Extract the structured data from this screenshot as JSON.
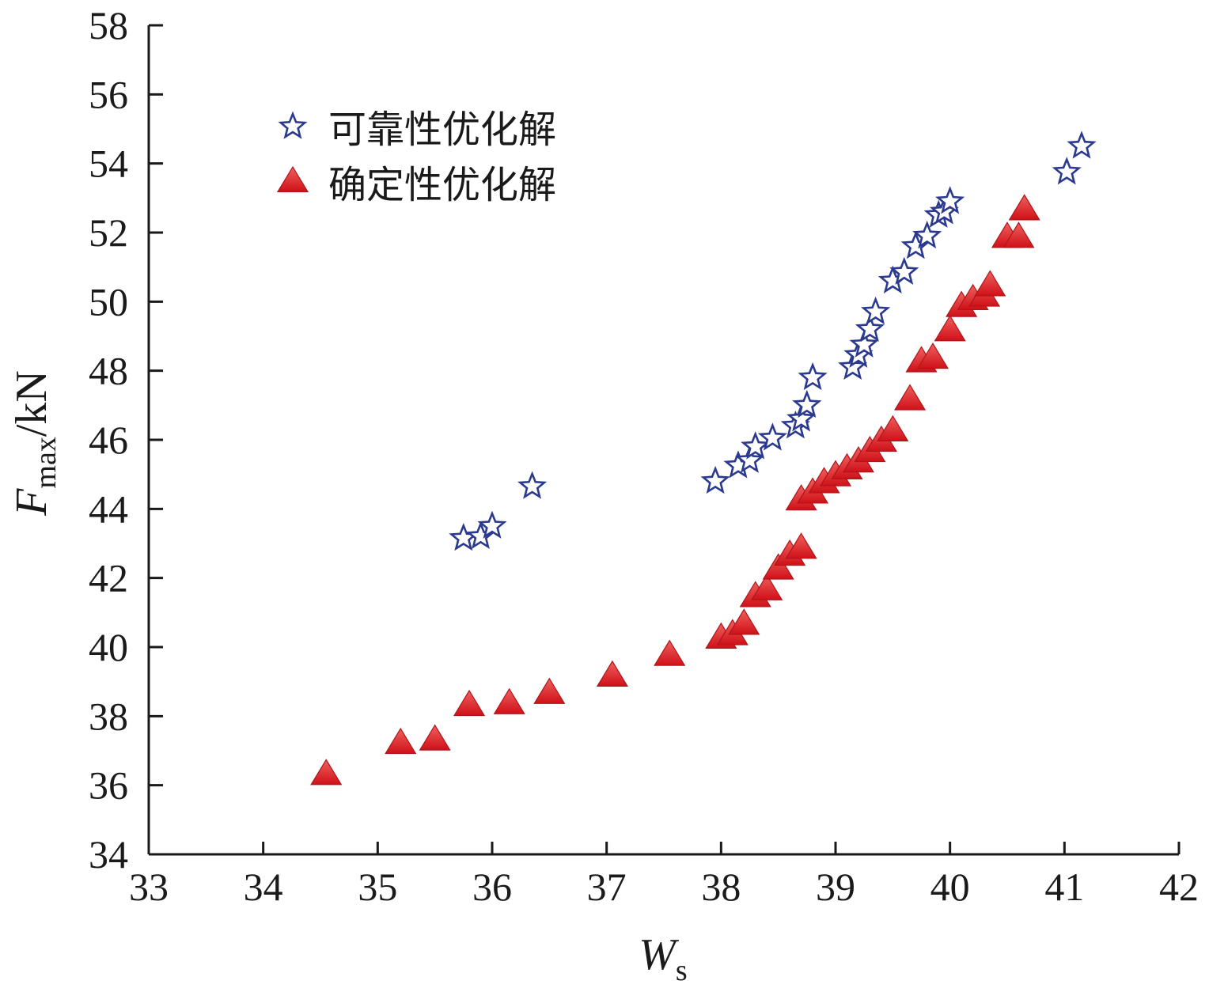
{
  "chart_data": {
    "type": "scatter",
    "xlabel": {
      "main": "W",
      "sub": "s"
    },
    "ylabel": {
      "main": "F",
      "sub": "max",
      "unit": "/kN"
    },
    "xlim": [
      33,
      42
    ],
    "ylim": [
      34,
      58
    ],
    "xticks": [
      33,
      34,
      35,
      36,
      37,
      38,
      39,
      40,
      41,
      42
    ],
    "yticks": [
      34,
      36,
      38,
      40,
      42,
      44,
      46,
      48,
      50,
      52,
      54,
      56,
      58
    ],
    "legend_position": "top-left",
    "series": [
      {
        "name": "可靠性优化解",
        "marker": "star",
        "color": "#2b3a8f",
        "points": [
          [
            35.75,
            43.15
          ],
          [
            35.9,
            43.2
          ],
          [
            36.0,
            43.5
          ],
          [
            36.35,
            44.65
          ],
          [
            37.95,
            44.8
          ],
          [
            38.15,
            45.25
          ],
          [
            38.25,
            45.4
          ],
          [
            38.3,
            45.8
          ],
          [
            38.45,
            46.05
          ],
          [
            38.65,
            46.4
          ],
          [
            38.7,
            46.6
          ],
          [
            38.75,
            47.0
          ],
          [
            38.8,
            47.8
          ],
          [
            39.15,
            48.1
          ],
          [
            39.2,
            48.45
          ],
          [
            39.25,
            48.75
          ],
          [
            39.3,
            49.2
          ],
          [
            39.35,
            49.7
          ],
          [
            39.5,
            50.6
          ],
          [
            39.6,
            50.85
          ],
          [
            39.7,
            51.6
          ],
          [
            39.8,
            51.9
          ],
          [
            39.9,
            52.5
          ],
          [
            39.95,
            52.6
          ],
          [
            40.0,
            52.9
          ],
          [
            41.02,
            53.75
          ],
          [
            41.15,
            54.5
          ]
        ]
      },
      {
        "name": "确定性优化解",
        "marker": "triangle",
        "color": "#e8212a",
        "points": [
          [
            34.55,
            36.35
          ],
          [
            35.2,
            37.25
          ],
          [
            35.5,
            37.35
          ],
          [
            35.8,
            38.35
          ],
          [
            36.15,
            38.4
          ],
          [
            36.5,
            38.7
          ],
          [
            37.05,
            39.2
          ],
          [
            37.55,
            39.8
          ],
          [
            38.0,
            40.3
          ],
          [
            38.1,
            40.4
          ],
          [
            38.2,
            40.7
          ],
          [
            38.3,
            41.5
          ],
          [
            38.4,
            41.7
          ],
          [
            38.5,
            42.3
          ],
          [
            38.6,
            42.7
          ],
          [
            38.7,
            42.9
          ],
          [
            38.7,
            44.3
          ],
          [
            38.8,
            44.5
          ],
          [
            38.9,
            44.8
          ],
          [
            39.0,
            45.0
          ],
          [
            39.1,
            45.2
          ],
          [
            39.2,
            45.4
          ],
          [
            39.3,
            45.7
          ],
          [
            39.4,
            46.0
          ],
          [
            39.5,
            46.3
          ],
          [
            39.65,
            47.2
          ],
          [
            39.75,
            48.3
          ],
          [
            39.85,
            48.4
          ],
          [
            40.0,
            49.2
          ],
          [
            40.1,
            49.9
          ],
          [
            40.2,
            50.1
          ],
          [
            40.3,
            50.2
          ],
          [
            40.35,
            50.5
          ],
          [
            40.5,
            51.9
          ],
          [
            40.6,
            51.9
          ],
          [
            40.65,
            52.7
          ]
        ]
      }
    ]
  }
}
